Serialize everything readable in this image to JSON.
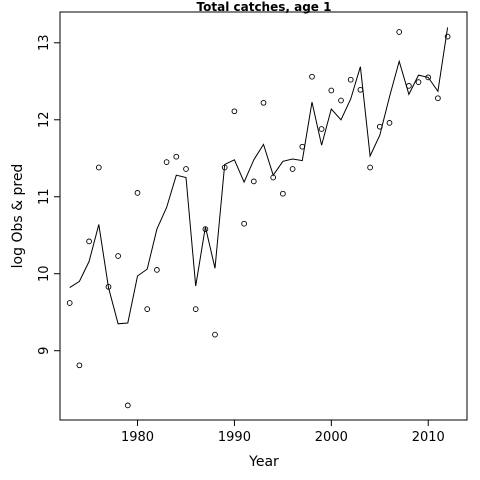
{
  "chart_data": {
    "type": "scatter",
    "title": "Total catches, age 1",
    "xlabel": "Year",
    "ylabel": "log Obs & pred",
    "xlim": [
      1972,
      2014
    ],
    "ylim": [
      8.1,
      13.4
    ],
    "xticks": [
      1980,
      1990,
      2000,
      2010
    ],
    "yticks": [
      9,
      10,
      11,
      12,
      13
    ],
    "grid": false,
    "series": [
      {
        "style": "points",
        "x": [
          1973,
          1974,
          1975,
          1976,
          1977,
          1978,
          1979,
          1980,
          1981,
          1982,
          1983,
          1984,
          1985,
          1986,
          1987,
          1988,
          1989,
          1990,
          1991,
          1992,
          1993,
          1994,
          1995,
          1996,
          1997,
          1998,
          1999,
          2000,
          2001,
          2002,
          2003,
          2004,
          2005,
          2006,
          2007,
          2008,
          2009,
          2010,
          2011,
          2012
        ],
        "values": [
          9.62,
          8.81,
          10.42,
          11.38,
          9.83,
          10.23,
          8.29,
          11.05,
          9.54,
          10.05,
          11.45,
          11.52,
          11.36,
          9.54,
          10.58,
          9.21,
          11.38,
          12.11,
          10.65,
          11.2,
          12.22,
          11.25,
          11.04,
          11.36,
          11.65,
          12.56,
          11.88,
          12.38,
          12.25,
          12.52,
          12.39,
          11.38,
          11.91,
          11.96,
          13.14,
          12.44,
          12.49,
          12.55,
          12.28,
          13.08
        ]
      },
      {
        "style": "line",
        "x": [
          1973,
          1974,
          1975,
          1976,
          1977,
          1978,
          1979,
          1980,
          1981,
          1982,
          1983,
          1984,
          1985,
          1986,
          1987,
          1988,
          1989,
          1990,
          1991,
          1992,
          1993,
          1994,
          1995,
          1996,
          1997,
          1998,
          1999,
          2000,
          2001,
          2002,
          2003,
          2004,
          2005,
          2006,
          2007,
          2008,
          2009,
          2010,
          2011,
          2012
        ],
        "values": [
          9.82,
          9.9,
          10.16,
          10.64,
          9.82,
          9.35,
          9.36,
          9.97,
          10.06,
          10.58,
          10.86,
          11.28,
          11.25,
          9.84,
          10.61,
          10.07,
          11.42,
          11.48,
          11.19,
          11.48,
          11.68,
          11.28,
          11.46,
          11.49,
          11.47,
          12.23,
          11.67,
          12.14,
          12.0,
          12.27,
          12.69,
          11.53,
          11.8,
          12.3,
          12.76,
          12.33,
          12.58,
          12.55,
          12.37,
          13.2
        ]
      }
    ]
  }
}
